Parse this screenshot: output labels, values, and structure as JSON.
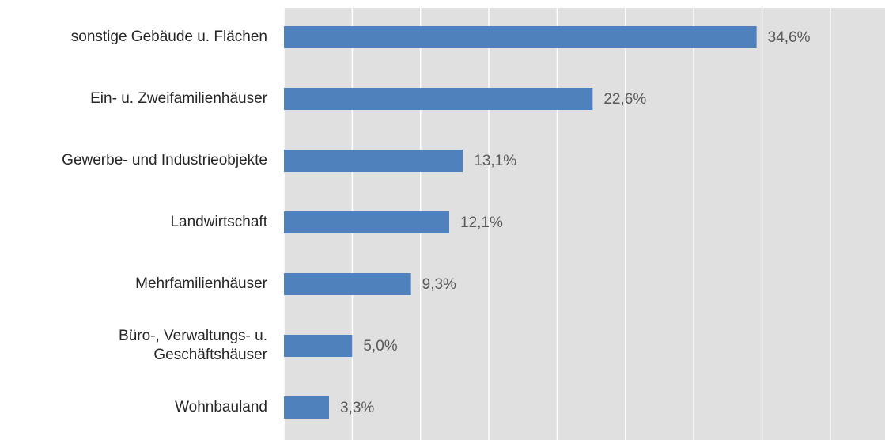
{
  "chart_data": {
    "type": "bar",
    "orientation": "horizontal",
    "categories": [
      "sonstige Gebäude u. Flächen",
      "Ein- u. Zweifamilienhäuser",
      "Gewerbe- und Industrieobjekte",
      "Landwirtschaft",
      "Mehrfamilienhäuser",
      "Büro-, Verwaltungs- u.\nGeschäftshäuser",
      "Wohnbauland"
    ],
    "values": [
      34.6,
      22.6,
      13.1,
      12.1,
      9.3,
      5.0,
      3.3
    ],
    "value_labels": [
      "34,6%",
      "22,6%",
      "13,1%",
      "12,1%",
      "9,3%",
      "5,0%",
      "3,3%"
    ],
    "color": "#4f81bd",
    "xlim": [
      0,
      44
    ],
    "xticks": [
      0,
      5,
      10,
      15,
      20,
      25,
      30,
      35,
      40
    ],
    "grid": true
  }
}
